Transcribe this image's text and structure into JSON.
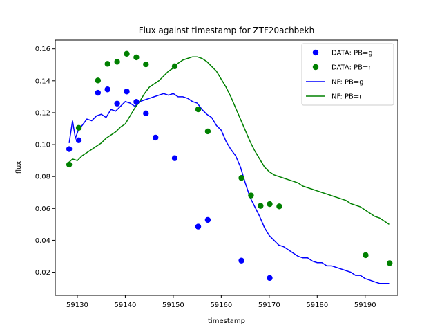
{
  "chart_data": {
    "type": "scatter",
    "title": "Flux against timestamp for ZTF20achbekh",
    "xlabel": "timestamp",
    "ylabel": "flux",
    "xlim": [
      59125.4,
      59196.8
    ],
    "ylim": [
      0.0055,
      0.1655
    ],
    "x_ticks": [
      59130,
      59140,
      59150,
      59160,
      59170,
      59180,
      59190
    ],
    "y_ticks": [
      0.02,
      0.04,
      0.06,
      0.08,
      0.1,
      0.12,
      0.14,
      0.16
    ],
    "x_tick_labels": [
      "59130",
      "59140",
      "59150",
      "59160",
      "59170",
      "59180",
      "59190"
    ],
    "y_tick_labels": [
      "0.02",
      "0.04",
      "0.06",
      "0.08",
      "0.10",
      "0.12",
      "0.14",
      "0.16"
    ],
    "grid": false,
    "legend_position": "top-right",
    "colors": {
      "g": "#0000ff",
      "r": "#008000"
    },
    "series": [
      {
        "name": "DATA: PB=g",
        "kind": "points",
        "color": "#0000ff",
        "x": [
          59128.3,
          59130.3,
          59134.3,
          59136.3,
          59138.3,
          59140.3,
          59142.3,
          59144.3,
          59146.3,
          59150.3,
          59155.2,
          59157.2,
          59164.2,
          59170.1
        ],
        "y": [
          0.0972,
          0.1027,
          0.1325,
          0.1346,
          0.1257,
          0.1333,
          0.1268,
          0.1196,
          0.1044,
          0.0915,
          0.0486,
          0.0528,
          0.0273,
          0.0164
        ]
      },
      {
        "name": "DATA: PB=r",
        "kind": "points",
        "color": "#008000",
        "x": [
          59128.3,
          59130.3,
          59134.3,
          59136.3,
          59138.3,
          59140.3,
          59142.3,
          59144.3,
          59150.3,
          59155.2,
          59157.2,
          59164.2,
          59166.2,
          59168.2,
          59170.1,
          59172.1,
          59190.1,
          59195.1
        ],
        "y": [
          0.0875,
          0.1105,
          0.1402,
          0.1506,
          0.1519,
          0.1569,
          0.1547,
          0.1503,
          0.1491,
          0.1221,
          0.1083,
          0.0791,
          0.0681,
          0.0616,
          0.0627,
          0.0613,
          0.0307,
          0.0257
        ]
      },
      {
        "name": "NF: PB=g",
        "kind": "line",
        "color": "#0000ff",
        "x": [
          59128.3,
          59129.0,
          59129.6,
          59130.2,
          59131.0,
          59132.0,
          59133.0,
          59134.0,
          59135.0,
          59136.0,
          59137.0,
          59138.0,
          59139.0,
          59140.0,
          59141.0,
          59142.0,
          59143.0,
          59144.0,
          59145.0,
          59146.0,
          59147.0,
          59148.0,
          59149.0,
          59150.0,
          59151.0,
          59152.0,
          59153.0,
          59154.0,
          59155.0,
          59156.0,
          59157.0,
          59158.0,
          59159.0,
          59160.0,
          59161.0,
          59162.0,
          59163.0,
          59164.0,
          59165.0,
          59166.0,
          59167.0,
          59168.0,
          59169.0,
          59170.0,
          59171.0,
          59172.0,
          59173.0,
          59174.0,
          59175.0,
          59176.0,
          59177.0,
          59178.0,
          59179.0,
          59180.0,
          59181.0,
          59182.0,
          59183.0,
          59184.0,
          59185.0,
          59186.0,
          59187.0,
          59188.0,
          59189.0,
          59190.0,
          59191.0,
          59192.0,
          59193.0,
          59194.0,
          59195.0
        ],
        "y": [
          0.101,
          0.115,
          0.104,
          0.109,
          0.112,
          0.116,
          0.115,
          0.118,
          0.119,
          0.117,
          0.122,
          0.121,
          0.124,
          0.127,
          0.126,
          0.124,
          0.127,
          0.128,
          0.129,
          0.13,
          0.131,
          0.132,
          0.131,
          0.132,
          0.13,
          0.13,
          0.129,
          0.127,
          0.126,
          0.122,
          0.119,
          0.117,
          0.112,
          0.109,
          0.102,
          0.097,
          0.093,
          0.086,
          0.076,
          0.067,
          0.061,
          0.055,
          0.048,
          0.043,
          0.04,
          0.037,
          0.036,
          0.034,
          0.032,
          0.03,
          0.029,
          0.029,
          0.027,
          0.026,
          0.026,
          0.024,
          0.024,
          0.023,
          0.022,
          0.021,
          0.02,
          0.018,
          0.018,
          0.016,
          0.015,
          0.014,
          0.013,
          0.013,
          0.013
        ]
      },
      {
        "name": "NF: PB=r",
        "kind": "line",
        "color": "#008000",
        "x": [
          59128.3,
          59129.0,
          59130.0,
          59131.0,
          59132.0,
          59133.0,
          59134.0,
          59135.0,
          59136.0,
          59137.0,
          59138.0,
          59139.0,
          59140.0,
          59141.0,
          59142.0,
          59143.0,
          59144.0,
          59145.0,
          59146.0,
          59147.0,
          59148.0,
          59149.0,
          59150.0,
          59151.0,
          59152.0,
          59153.0,
          59154.0,
          59155.0,
          59156.0,
          59157.0,
          59158.0,
          59159.0,
          59160.0,
          59161.0,
          59162.0,
          59163.0,
          59164.0,
          59165.0,
          59166.0,
          59167.0,
          59168.0,
          59169.0,
          59170.0,
          59171.0,
          59172.0,
          59173.0,
          59174.0,
          59175.0,
          59176.0,
          59177.0,
          59178.0,
          59179.0,
          59180.0,
          59181.0,
          59182.0,
          59183.0,
          59184.0,
          59185.0,
          59186.0,
          59187.0,
          59188.0,
          59189.0,
          59190.0,
          59191.0,
          59192.0,
          59193.0,
          59194.0,
          59195.0
        ],
        "y": [
          0.089,
          0.091,
          0.09,
          0.093,
          0.095,
          0.097,
          0.099,
          0.101,
          0.104,
          0.106,
          0.108,
          0.111,
          0.113,
          0.118,
          0.123,
          0.127,
          0.132,
          0.136,
          0.138,
          0.14,
          0.143,
          0.146,
          0.148,
          0.151,
          0.153,
          0.154,
          0.155,
          0.155,
          0.154,
          0.152,
          0.149,
          0.146,
          0.141,
          0.136,
          0.13,
          0.123,
          0.116,
          0.109,
          0.102,
          0.096,
          0.091,
          0.086,
          0.083,
          0.081,
          0.08,
          0.079,
          0.078,
          0.077,
          0.076,
          0.074,
          0.073,
          0.072,
          0.071,
          0.07,
          0.069,
          0.068,
          0.067,
          0.066,
          0.065,
          0.063,
          0.062,
          0.061,
          0.059,
          0.057,
          0.055,
          0.054,
          0.052,
          0.05
        ]
      }
    ]
  }
}
